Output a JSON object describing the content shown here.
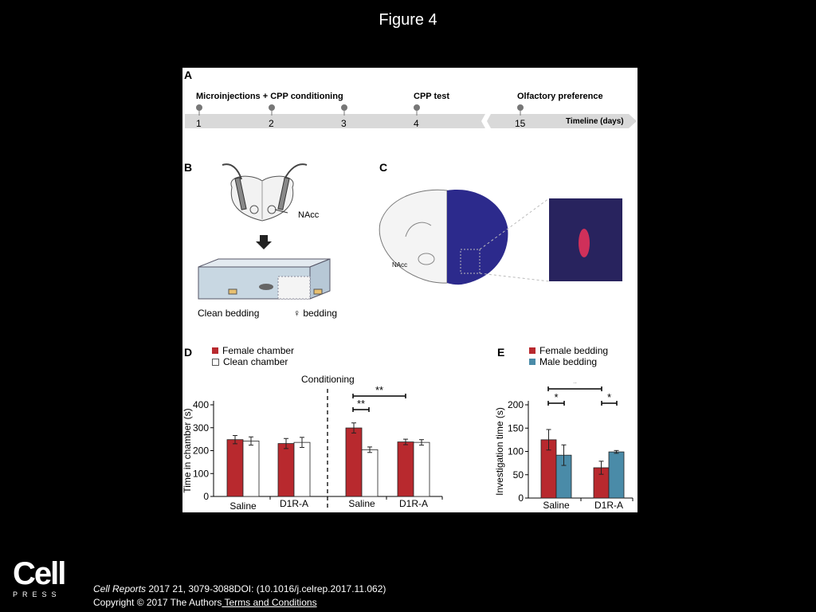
{
  "figure_title": "Figure 4",
  "panelA": {
    "label": "A",
    "events": [
      "Microinjections + CPP conditioning",
      "CPP test",
      "Olfactory preference"
    ],
    "days": [
      "1",
      "2",
      "3",
      "4",
      "15"
    ],
    "axis_label": "Timeline (days)"
  },
  "panelB": {
    "label": "B",
    "nacc_label": "NAcc",
    "clean_label": "Clean bedding",
    "female_label": "♀ bedding"
  },
  "panelC": {
    "label": "C",
    "nacc_label": "NAcc"
  },
  "colors": {
    "red": "#b8292e",
    "blue": "#4a8ba8",
    "white": "#ffffff",
    "brain_blue": "#2c2a8c"
  },
  "chart_data": [
    {
      "type": "bar",
      "panel": "D",
      "legend": [
        "Female chamber",
        "Clean chamber"
      ],
      "annotation": "Conditioning",
      "ylabel": "Time in chamber (s)",
      "ylim": [
        0,
        400
      ],
      "yticks": [
        "0",
        "100",
        "200",
        "300",
        "400"
      ],
      "categories": [
        "Saline",
        "D1R-A",
        "Saline",
        "D1R-A"
      ],
      "series": [
        {
          "name": "Female chamber",
          "values": [
            248,
            231,
            299,
            238
          ],
          "errors": [
            18,
            22,
            22,
            12
          ]
        },
        {
          "name": "Clean chamber",
          "values": [
            242,
            236,
            204,
            236
          ],
          "errors": [
            18,
            22,
            12,
            12
          ]
        }
      ],
      "significance": [
        "**",
        "**"
      ]
    },
    {
      "type": "bar",
      "panel": "E",
      "legend": [
        "Female bedding",
        "Male bedding"
      ],
      "ylabel": "Investigation time (s)",
      "ylim": [
        0,
        200
      ],
      "yticks": [
        "0",
        "50",
        "100",
        "150",
        "200"
      ],
      "categories": [
        "Saline",
        "D1R-A"
      ],
      "series": [
        {
          "name": "Female bedding",
          "values": [
            125,
            65
          ],
          "errors": [
            22,
            14
          ]
        },
        {
          "name": "Male bedding",
          "values": [
            92,
            99
          ],
          "errors": [
            22,
            3
          ]
        }
      ],
      "significance": [
        "*",
        "*",
        "*"
      ]
    }
  ],
  "citation": {
    "journal": "Cell Reports",
    "details": " 2017 21, 3079-3088DOI: (10.1016/j.celrep.2017.11.062)",
    "copyright": "Copyright © 2017 The Authors",
    "terms_link": " Terms and Conditions"
  },
  "logo": {
    "word": "Cell",
    "press": "PRESS"
  }
}
